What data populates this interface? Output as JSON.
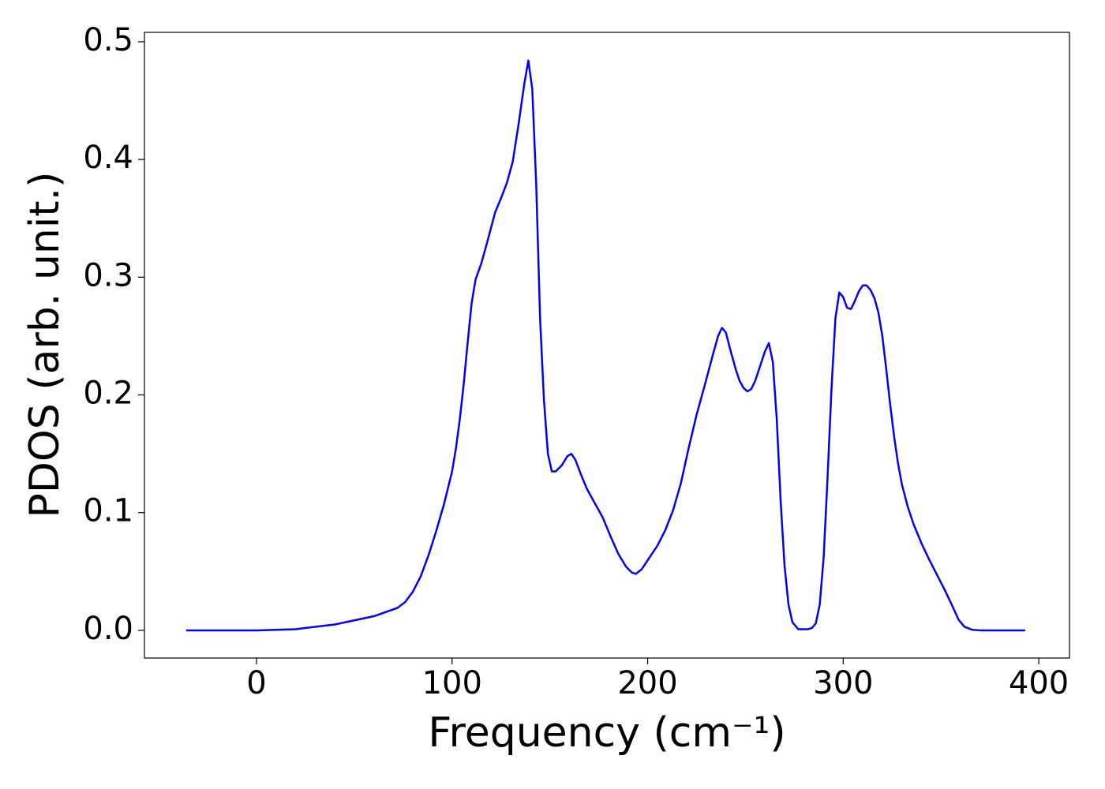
{
  "chart_data": {
    "type": "line",
    "xlabel": "Frequency (cm⁻¹)",
    "ylabel": "PDOS (arb. unit.)",
    "xlim": [
      -57.3,
      415.7
    ],
    "ylim": [
      -0.0235,
      0.508
    ],
    "xticks": [
      0,
      100,
      200,
      300,
      400
    ],
    "yticks": [
      {
        "value": 0,
        "label": "0.0"
      },
      0.1,
      0.2,
      0.3,
      0.4,
      0.5
    ],
    "grid": false,
    "series": [
      {
        "color": "#0000ff",
        "x": [
          -36,
          0,
          20,
          40,
          60,
          72,
          76,
          80,
          84,
          88,
          92,
          96,
          100,
          102,
          104,
          106,
          108,
          110,
          112,
          115,
          118,
          122,
          125,
          128,
          131,
          134,
          137,
          139,
          141,
          143,
          145,
          147,
          149,
          151,
          153,
          156,
          159,
          161,
          163,
          166,
          169,
          173,
          177,
          181,
          185,
          189,
          192,
          194,
          197,
          201,
          205,
          209,
          213,
          217,
          221,
          225,
          229,
          233,
          236,
          238,
          240,
          242,
          245,
          247,
          249,
          251,
          253,
          255,
          258,
          260,
          262,
          264,
          266,
          268,
          270,
          272,
          274,
          277,
          282,
          284,
          286,
          288,
          290,
          292,
          294,
          296,
          298,
          300,
          302,
          304,
          306,
          308,
          310,
          312,
          314,
          316,
          318,
          320,
          322,
          324,
          326,
          328,
          330,
          333,
          336,
          340,
          344,
          348,
          352,
          356,
          359,
          362,
          366,
          370,
          393
        ],
        "values": [
          0,
          0,
          0.001,
          0.005,
          0.012,
          0.019,
          0.024,
          0.033,
          0.046,
          0.064,
          0.085,
          0.108,
          0.135,
          0.155,
          0.18,
          0.21,
          0.245,
          0.278,
          0.298,
          0.312,
          0.33,
          0.355,
          0.367,
          0.38,
          0.398,
          0.43,
          0.465,
          0.484,
          0.46,
          0.38,
          0.265,
          0.195,
          0.15,
          0.135,
          0.135,
          0.14,
          0.148,
          0.15,
          0.145,
          0.132,
          0.12,
          0.108,
          0.096,
          0.08,
          0.065,
          0.054,
          0.049,
          0.048,
          0.052,
          0.062,
          0.072,
          0.085,
          0.102,
          0.125,
          0.155,
          0.183,
          0.207,
          0.232,
          0.25,
          0.257,
          0.253,
          0.24,
          0.222,
          0.212,
          0.206,
          0.203,
          0.205,
          0.212,
          0.227,
          0.237,
          0.244,
          0.228,
          0.18,
          0.11,
          0.055,
          0.022,
          0.007,
          0.001,
          0.001,
          0.002,
          0.006,
          0.022,
          0.062,
          0.13,
          0.205,
          0.265,
          0.287,
          0.283,
          0.274,
          0.273,
          0.28,
          0.288,
          0.293,
          0.293,
          0.289,
          0.282,
          0.27,
          0.25,
          0.222,
          0.192,
          0.165,
          0.142,
          0.124,
          0.105,
          0.09,
          0.074,
          0.06,
          0.047,
          0.034,
          0.02,
          0.009,
          0.003,
          0.0005,
          0,
          0
        ]
      }
    ]
  }
}
